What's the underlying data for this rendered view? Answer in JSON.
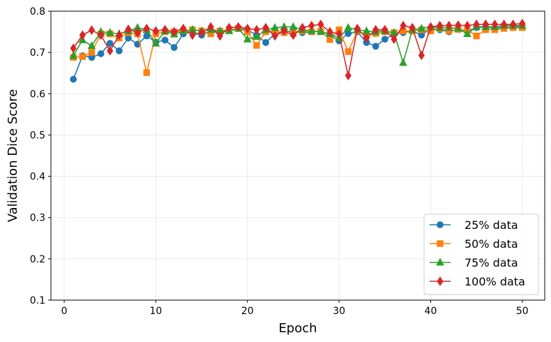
{
  "chart_data": {
    "type": "line",
    "title": "",
    "xlabel": "Epoch",
    "ylabel": "Validation Dice Score",
    "xlim": [
      -1.45,
      52.45
    ],
    "ylim": [
      0.1,
      0.8
    ],
    "xticks": [
      0,
      10,
      20,
      30,
      40,
      50
    ],
    "yticks": [
      0.1,
      0.2,
      0.3,
      0.4,
      0.5,
      0.6,
      0.7,
      0.8
    ],
    "grid": true,
    "legend_position": "lower-right",
    "x": [
      1,
      2,
      3,
      4,
      5,
      6,
      7,
      8,
      9,
      10,
      11,
      12,
      13,
      14,
      15,
      16,
      17,
      18,
      19,
      20,
      21,
      22,
      23,
      24,
      25,
      26,
      27,
      28,
      29,
      30,
      31,
      32,
      33,
      34,
      35,
      36,
      37,
      38,
      39,
      40,
      41,
      42,
      43,
      44,
      45,
      46,
      47,
      48,
      49,
      50
    ],
    "series": [
      {
        "name": "25% data",
        "color": "#1f77b4",
        "marker": "circle",
        "values": [
          0.635,
          0.692,
          0.688,
          0.697,
          0.722,
          0.704,
          0.735,
          0.72,
          0.74,
          0.725,
          0.73,
          0.712,
          0.745,
          0.75,
          0.742,
          0.752,
          0.748,
          0.755,
          0.758,
          0.755,
          0.742,
          0.724,
          0.745,
          0.752,
          0.75,
          0.748,
          0.75,
          0.752,
          0.742,
          0.728,
          0.746,
          0.75,
          0.724,
          0.715,
          0.732,
          0.744,
          0.748,
          0.752,
          0.742,
          0.758,
          0.755,
          0.75,
          0.756,
          0.752,
          0.76,
          0.762,
          0.758,
          0.762,
          0.76,
          0.765
        ]
      },
      {
        "name": "50% data",
        "color": "#ff7f0e",
        "marker": "square",
        "values": [
          0.688,
          0.69,
          0.7,
          0.745,
          0.745,
          0.735,
          0.748,
          0.745,
          0.651,
          0.745,
          0.75,
          0.75,
          0.752,
          0.755,
          0.752,
          0.745,
          0.752,
          0.755,
          0.758,
          0.75,
          0.717,
          0.75,
          0.752,
          0.748,
          0.746,
          0.752,
          0.75,
          0.752,
          0.731,
          0.755,
          0.702,
          0.752,
          0.742,
          0.746,
          0.75,
          0.748,
          0.752,
          0.752,
          0.755,
          0.752,
          0.758,
          0.752,
          0.756,
          0.754,
          0.74,
          0.755,
          0.755,
          0.758,
          0.76,
          0.76
        ]
      },
      {
        "name": "75% data",
        "color": "#2ca02c",
        "marker": "triangle",
        "values": [
          0.692,
          0.73,
          0.716,
          0.75,
          0.748,
          0.745,
          0.752,
          0.76,
          0.755,
          0.722,
          0.752,
          0.744,
          0.752,
          0.755,
          0.752,
          0.755,
          0.752,
          0.752,
          0.758,
          0.732,
          0.738,
          0.755,
          0.76,
          0.762,
          0.762,
          0.755,
          0.752,
          0.75,
          0.745,
          0.735,
          0.76,
          0.755,
          0.752,
          0.75,
          0.752,
          0.748,
          0.675,
          0.755,
          0.758,
          0.762,
          0.76,
          0.76,
          0.758,
          0.745,
          0.762,
          0.762,
          0.762,
          0.765,
          0.765,
          0.765
        ]
      },
      {
        "name": "100% data",
        "color": "#d62728",
        "marker": "diamond",
        "values": [
          0.71,
          0.742,
          0.754,
          0.742,
          0.704,
          0.742,
          0.756,
          0.748,
          0.758,
          0.752,
          0.755,
          0.75,
          0.758,
          0.742,
          0.748,
          0.762,
          0.74,
          0.76,
          0.762,
          0.758,
          0.755,
          0.76,
          0.74,
          0.752,
          0.742,
          0.76,
          0.765,
          0.768,
          0.75,
          0.745,
          0.644,
          0.758,
          0.735,
          0.755,
          0.755,
          0.732,
          0.765,
          0.76,
          0.693,
          0.762,
          0.765,
          0.765,
          0.766,
          0.765,
          0.768,
          0.768,
          0.768,
          0.768,
          0.768,
          0.77
        ]
      }
    ]
  }
}
